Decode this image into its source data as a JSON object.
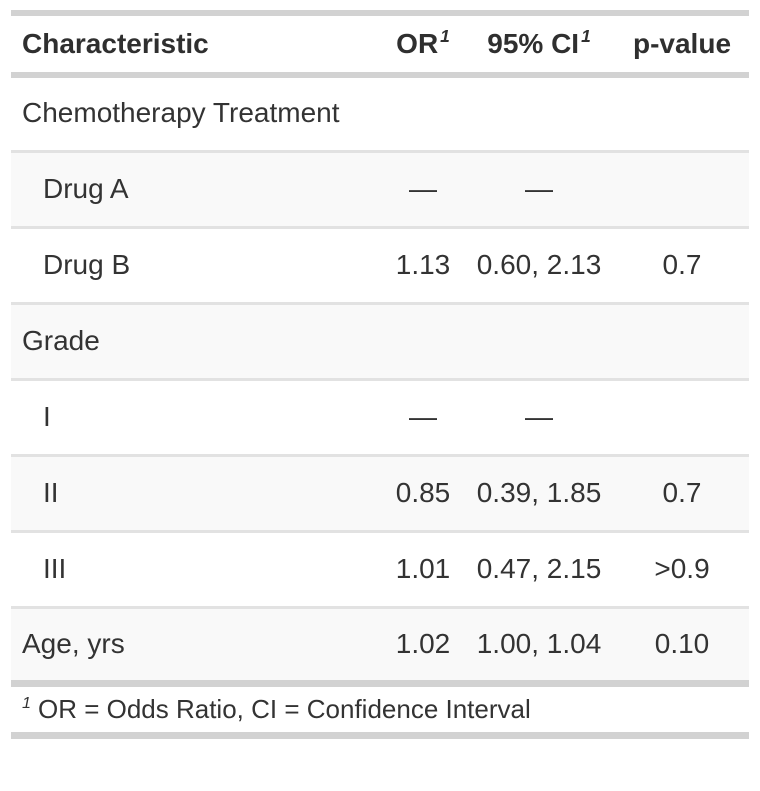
{
  "table": {
    "header": {
      "characteristic": "Characteristic",
      "or_label": "OR",
      "or_footnote_marker": "1",
      "ci_label": "95% CI",
      "ci_footnote_marker": "1",
      "p_label": "p-value"
    },
    "rows": [
      {
        "label": "Chemotherapy Treatment",
        "or": "",
        "ci": "",
        "p": "",
        "type": "group-header"
      },
      {
        "label": "Drug A",
        "or": "—",
        "ci": "—",
        "p": "",
        "type": "level"
      },
      {
        "label": "Drug B",
        "or": "1.13",
        "ci": "0.60, 2.13",
        "p": "0.7",
        "type": "level"
      },
      {
        "label": "Grade",
        "or": "",
        "ci": "",
        "p": "",
        "type": "group-header"
      },
      {
        "label": "I",
        "or": "—",
        "ci": "—",
        "p": "",
        "type": "level"
      },
      {
        "label": "II",
        "or": "0.85",
        "ci": "0.39, 1.85",
        "p": "0.7",
        "type": "level"
      },
      {
        "label": "III",
        "or": "1.01",
        "ci": "0.47, 2.15",
        "p": ">0.9",
        "type": "level"
      },
      {
        "label": "Age, yrs",
        "or": "1.02",
        "ci": "1.00, 1.04",
        "p": "0.10",
        "type": "variable"
      }
    ],
    "footnote": {
      "marker": "1",
      "text": "OR = Odds Ratio, CI = Confidence Interval"
    },
    "abbreviations": {
      "OR": "Odds Ratio",
      "CI": "Confidence Interval"
    },
    "colors": {
      "thick_border": "#d2d2d2",
      "thin_border": "#e2e2e2",
      "stripe_background": "#f9f9f9",
      "text": "#333333"
    }
  }
}
